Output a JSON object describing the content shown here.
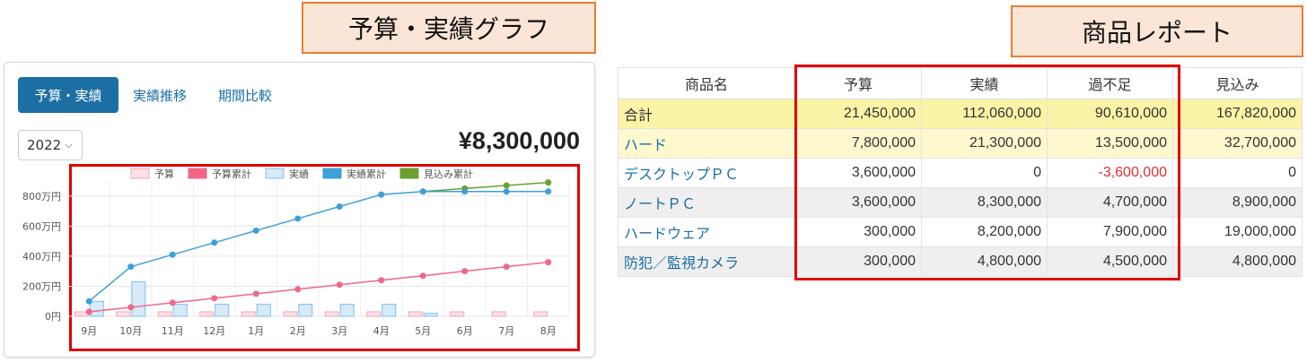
{
  "callouts": {
    "left": "予算・実績グラフ",
    "right": "商品レポート"
  },
  "card": {
    "tabs": [
      {
        "label": "予算・実績",
        "active": true
      },
      {
        "label": "実績推移",
        "active": false
      },
      {
        "label": "期間比較",
        "active": false
      }
    ],
    "year": "2022",
    "total": "¥8,300,000"
  },
  "colors": {
    "budget_bar": "#fde0e6",
    "budget_line": "#f16788",
    "actual_bar": "#d6eaf8",
    "actual_line": "#3ea0d8",
    "forecast_line": "#6aa030",
    "tab_active": "#1b6fa3"
  },
  "chart_data": {
    "type": "bar",
    "categories": [
      "9月",
      "10月",
      "11月",
      "12月",
      "1月",
      "2月",
      "3月",
      "4月",
      "5月",
      "6月",
      "7月",
      "8月"
    ],
    "yticks": [
      "0円",
      "200万円",
      "400万円",
      "600万円",
      "800万円"
    ],
    "ylim": [
      0,
      900
    ],
    "legend_position": "top",
    "series": [
      {
        "name": "予算",
        "kind": "bar",
        "values": [
          30,
          30,
          30,
          30,
          30,
          30,
          30,
          30,
          30,
          30,
          30,
          30
        ]
      },
      {
        "name": "予算累計",
        "kind": "line",
        "values": [
          30,
          60,
          90,
          120,
          150,
          180,
          210,
          240,
          270,
          300,
          330,
          360
        ]
      },
      {
        "name": "実績",
        "kind": "bar",
        "values": [
          100,
          230,
          80,
          80,
          80,
          80,
          80,
          80,
          20,
          0,
          0,
          0
        ]
      },
      {
        "name": "実績累計",
        "kind": "line",
        "values": [
          100,
          330,
          410,
          490,
          570,
          650,
          730,
          810,
          830,
          830,
          830,
          830
        ]
      },
      {
        "name": "見込み累計",
        "kind": "line",
        "values": [
          null,
          null,
          null,
          null,
          null,
          null,
          null,
          null,
          830,
          850,
          870,
          890
        ]
      }
    ]
  },
  "table": {
    "headers": [
      "商品名",
      "予算",
      "実績",
      "過不足",
      "見込み"
    ],
    "rows": [
      {
        "name": "合計",
        "budget": "21,450,000",
        "actual": "112,060,000",
        "diff": "90,610,000",
        "forecast": "167,820,000",
        "style": "hl",
        "neg": false
      },
      {
        "name": "ハード",
        "budget": "7,800,000",
        "actual": "21,300,000",
        "diff": "13,500,000",
        "forecast": "32,700,000",
        "style": "hl2",
        "neg": false
      },
      {
        "name": "デスクトップＰＣ",
        "budget": "3,600,000",
        "actual": "0",
        "diff": "-3,600,000",
        "forecast": "0",
        "style": "plain",
        "neg": true
      },
      {
        "name": "ノートＰＣ",
        "budget": "3,600,000",
        "actual": "8,300,000",
        "diff": "4,700,000",
        "forecast": "8,900,000",
        "style": "zebra",
        "neg": false
      },
      {
        "name": "ハードウェア",
        "budget": "300,000",
        "actual": "8,200,000",
        "diff": "7,900,000",
        "forecast": "19,000,000",
        "style": "plain",
        "neg": false
      },
      {
        "name": "防犯／監視カメラ",
        "budget": "300,000",
        "actual": "4,800,000",
        "diff": "4,500,000",
        "forecast": "4,800,000",
        "style": "zebra",
        "neg": false
      }
    ]
  }
}
